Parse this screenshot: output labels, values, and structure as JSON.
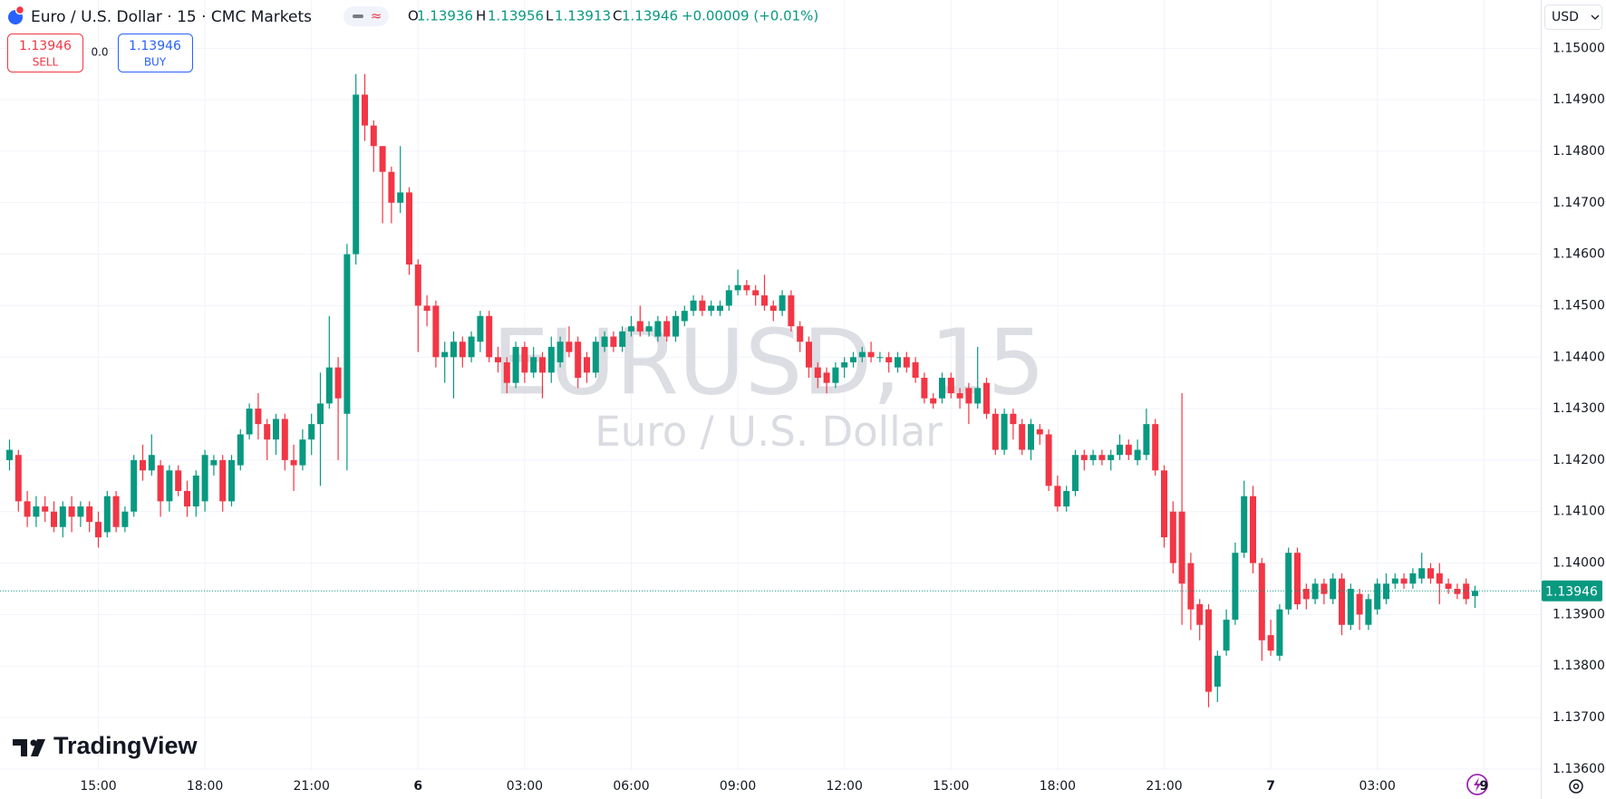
{
  "header": {
    "symbol_title": "Euro / U.S. Dollar · 15 · CMC Markets",
    "ohlc_labels": [
      "O",
      "H",
      "L",
      "C"
    ],
    "change": "+0.00009 (+0.01%)",
    "sell_price": "1.13946",
    "sell_label": "SELL",
    "spread": "0.0",
    "buy_price": "1.13946",
    "buy_label": "BUY",
    "currency": "USD"
  },
  "watermark": {
    "symbol": "EURUSD, 15",
    "name": "Euro / U.S. Dollar"
  },
  "brand": "TradingView",
  "chart_data": {
    "type": "candlestick",
    "categories": [
      null,
      null,
      null,
      null,
      null,
      null,
      null,
      null,
      null,
      null,
      "15:00",
      null,
      null,
      null,
      null,
      null,
      null,
      null,
      null,
      null,
      null,
      null,
      "18:00",
      null,
      null,
      null,
      null,
      null,
      null,
      null,
      null,
      null,
      null,
      null,
      "21:00",
      null,
      null,
      null,
      null,
      null,
      null,
      null,
      null,
      null,
      null,
      null,
      "6",
      null,
      null,
      null,
      null,
      null,
      null,
      null,
      null,
      null,
      null,
      null,
      "03:00",
      null,
      null,
      null,
      null,
      null,
      null,
      null,
      null,
      null,
      null,
      null,
      "06:00",
      null,
      null,
      null,
      null,
      null,
      null,
      null,
      null,
      null,
      null,
      null,
      "09:00",
      null,
      null,
      null,
      null,
      null,
      null,
      null,
      null,
      null,
      null,
      null,
      "12:00",
      null,
      null,
      null,
      null,
      null,
      null,
      null,
      null,
      null,
      null,
      null,
      "15:00",
      null,
      null,
      null,
      null,
      null,
      null,
      null,
      null,
      null,
      null,
      null,
      "18:00",
      null,
      null,
      null,
      null,
      null,
      null,
      null,
      null,
      null,
      null,
      null,
      "21:00",
      null,
      null,
      null,
      null,
      null,
      null,
      null,
      null,
      null,
      null,
      null,
      "7",
      null,
      null,
      null,
      null,
      null,
      null,
      null,
      null,
      null,
      null,
      null,
      "03:00",
      null,
      null,
      null,
      null,
      null,
      null,
      null,
      null,
      null,
      null,
      null,
      "9"
    ],
    "open": [
      1.142,
      1.1421,
      1.1412,
      1.1409,
      1.1411,
      1.141,
      1.1407,
      1.1411,
      1.1409,
      1.1411,
      1.1408,
      1.1406,
      1.1413,
      1.1407,
      1.141,
      1.142,
      1.1418,
      1.1419,
      1.1412,
      1.1418,
      1.1414,
      1.1411,
      1.1412,
      1.1419,
      1.142,
      1.1412,
      1.1419,
      1.1425,
      1.143,
      1.1427,
      1.1424,
      1.1428,
      1.142,
      1.1419,
      1.1424,
      1.1427,
      1.1431,
      1.1438,
      1.1429,
      1.146,
      1.1491,
      1.1485,
      1.1481,
      1.1476,
      1.147,
      1.1472,
      1.1458,
      1.145,
      1.145,
      1.144,
      1.144,
      1.1443,
      1.144,
      1.1443,
      1.1448,
      1.144,
      1.1439,
      1.1435,
      1.1442,
      1.1437,
      1.144,
      1.1437,
      1.1439,
      1.1443,
      1.1443,
      1.144,
      1.1437,
      1.1442,
      1.1444,
      1.1442,
      1.1445,
      1.1447,
      1.1445,
      1.1444,
      1.1447,
      1.1444,
      1.1447,
      1.1449,
      1.1451,
      1.1449,
      1.1449,
      1.145,
      1.1453,
      1.1454,
      1.1453,
      1.1452,
      1.145,
      1.1449,
      1.1452,
      1.1446,
      1.1443,
      1.1438,
      1.1437,
      1.1435,
      1.1438,
      1.1439,
      1.144,
      1.1441,
      1.144,
      1.144,
      1.1438,
      1.144,
      1.1439,
      1.1436,
      1.1432,
      1.1432,
      1.1436,
      1.1433,
      1.1434,
      1.1431,
      1.1435,
      1.1429,
      1.1422,
      1.1429,
      1.1427,
      1.1422,
      1.1426,
      1.1425,
      1.1415,
      1.1411,
      1.1414,
      1.1421,
      1.142,
      1.1421,
      1.142,
      1.1421,
      1.1423,
      1.142,
      1.1421,
      1.1427,
      1.1418,
      1.141,
      1.141,
      1.14,
      1.1392,
      1.1391,
      1.1376,
      1.1383,
      1.1389,
      1.1402,
      1.1413,
      1.14,
      1.1386,
      1.1382,
      1.1391,
      1.1402,
      1.1395,
      1.1393,
      1.1396,
      1.1393,
      1.1397,
      1.1388,
      1.1394,
      1.1388,
      1.1391,
      1.1393,
      1.1396,
      1.1397,
      1.1396,
      1.1397,
      1.1399,
      1.1398,
      1.1396,
      1.1395,
      1.1396,
      1.13936,
      null
    ],
    "high": [
      1.1424,
      1.1422,
      1.1414,
      1.1413,
      1.1413,
      1.1412,
      1.1412,
      1.1413,
      1.1412,
      1.1412,
      1.141,
      1.1414,
      1.1414,
      1.1411,
      1.1421,
      1.1423,
      1.1425,
      1.142,
      1.1419,
      1.1419,
      1.1416,
      1.1418,
      1.1422,
      1.1421,
      1.1421,
      1.1421,
      1.1426,
      1.1431,
      1.1433,
      1.1428,
      1.1429,
      1.1429,
      1.1423,
      1.1426,
      1.1429,
      1.1437,
      1.1448,
      1.144,
      1.1462,
      1.1495,
      1.1495,
      1.1486,
      1.1481,
      1.1477,
      1.1481,
      1.1473,
      1.1459,
      1.1452,
      1.1451,
      1.1443,
      1.1445,
      1.1444,
      1.1445,
      1.1449,
      1.1449,
      1.1442,
      1.144,
      1.1443,
      1.1443,
      1.1442,
      1.1441,
      1.1444,
      1.1444,
      1.1446,
      1.1444,
      1.1441,
      1.1444,
      1.1445,
      1.1445,
      1.1446,
      1.1448,
      1.145,
      1.1447,
      1.1448,
      1.1448,
      1.1449,
      1.145,
      1.1452,
      1.1452,
      1.1451,
      1.1451,
      1.1454,
      1.1457,
      1.1455,
      1.1454,
      1.1456,
      1.1451,
      1.1453,
      1.1453,
      1.1447,
      1.1444,
      1.1439,
      1.1438,
      1.1439,
      1.144,
      1.1441,
      1.1442,
      1.1443,
      1.1441,
      1.1441,
      1.1441,
      1.1441,
      1.144,
      1.1437,
      1.1433,
      1.1437,
      1.1437,
      1.1434,
      1.1435,
      1.1442,
      1.1436,
      1.143,
      1.143,
      1.143,
      1.1428,
      1.1428,
      1.1427,
      1.1426,
      1.1417,
      1.1415,
      1.1422,
      1.1422,
      1.1422,
      1.1422,
      1.1422,
      1.1425,
      1.1424,
      1.1424,
      1.143,
      1.1428,
      1.1419,
      1.1412,
      1.1433,
      1.1402,
      1.1393,
      1.1392,
      1.1383,
      1.1391,
      1.1404,
      1.1416,
      1.1415,
      1.1401,
      1.1389,
      1.1392,
      1.1403,
      1.1403,
      1.1396,
      1.1397,
      1.1397,
      1.1398,
      1.1398,
      1.1396,
      1.1395,
      1.1394,
      1.1397,
      1.1398,
      1.1398,
      1.1398,
      1.1399,
      1.1402,
      1.14,
      1.14,
      1.1397,
      1.1396,
      1.1397,
      1.13956,
      null
    ],
    "low": [
      1.1418,
      1.141,
      1.1407,
      1.1407,
      1.1408,
      1.1406,
      1.1405,
      1.1406,
      1.1407,
      1.1406,
      1.1403,
      1.1405,
      1.1406,
      1.1406,
      1.1409,
      1.1416,
      1.1417,
      1.1409,
      1.141,
      1.1413,
      1.1409,
      1.1409,
      1.141,
      1.1417,
      1.141,
      1.1411,
      1.1418,
      1.1424,
      1.1424,
      1.142,
      1.1421,
      1.1418,
      1.1414,
      1.1418,
      1.1421,
      1.1415,
      1.143,
      1.142,
      1.1418,
      1.1458,
      1.1482,
      1.1476,
      1.1466,
      1.1466,
      1.1468,
      1.1456,
      1.1441,
      1.1446,
      1.1438,
      1.1435,
      1.1432,
      1.1438,
      1.1439,
      1.1441,
      1.1439,
      1.1437,
      1.1433,
      1.1434,
      1.1435,
      1.1436,
      1.1432,
      1.1435,
      1.1438,
      1.144,
      1.1434,
      1.1435,
      1.1436,
      1.1441,
      1.1441,
      1.1441,
      1.1444,
      1.1444,
      1.1444,
      1.1443,
      1.1443,
      1.1443,
      1.1446,
      1.1448,
      1.1448,
      1.1448,
      1.1448,
      1.1449,
      1.1452,
      1.1452,
      1.145,
      1.1449,
      1.1447,
      1.1448,
      1.1445,
      1.1441,
      1.1436,
      1.1434,
      1.1433,
      1.1434,
      1.1436,
      1.1438,
      1.1439,
      1.1439,
      1.1439,
      1.1437,
      1.1437,
      1.1437,
      1.1435,
      1.1431,
      1.143,
      1.1431,
      1.1432,
      1.143,
      1.1427,
      1.143,
      1.1428,
      1.1421,
      1.1421,
      1.1424,
      1.1421,
      1.142,
      1.1423,
      1.1414,
      1.141,
      1.141,
      1.1413,
      1.1418,
      1.1419,
      1.1419,
      1.1418,
      1.142,
      1.142,
      1.1419,
      1.142,
      1.1417,
      1.1403,
      1.1398,
      1.1388,
      1.1387,
      1.1385,
      1.1372,
      1.1373,
      1.1382,
      1.1388,
      1.1401,
      1.1398,
      1.1381,
      1.1382,
      1.1381,
      1.139,
      1.1391,
      1.1391,
      1.1392,
      1.1392,
      1.1392,
      1.1386,
      1.1387,
      1.1387,
      1.1387,
      1.139,
      1.1392,
      1.1395,
      1.1395,
      1.1395,
      1.1396,
      1.1396,
      1.1392,
      1.1394,
      1.1393,
      1.1392,
      1.13913,
      null
    ],
    "close": [
      1.1422,
      1.1412,
      1.1409,
      1.1411,
      1.141,
      1.1407,
      1.1411,
      1.1409,
      1.1411,
      1.1408,
      1.1405,
      1.1413,
      1.1407,
      1.141,
      1.142,
      1.1418,
      1.1421,
      1.1412,
      1.1418,
      1.1414,
      1.1411,
      1.1417,
      1.1421,
      1.142,
      1.1412,
      1.142,
      1.1425,
      1.143,
      1.1427,
      1.1424,
      1.1428,
      1.142,
      1.1419,
      1.1424,
      1.1427,
      1.1431,
      1.1438,
      1.1432,
      1.146,
      1.1491,
      1.1485,
      1.1481,
      1.1476,
      1.147,
      1.1472,
      1.1458,
      1.145,
      1.1449,
      1.144,
      1.1441,
      1.1443,
      1.144,
      1.1444,
      1.1448,
      1.144,
      1.1439,
      1.1435,
      1.1442,
      1.1437,
      1.144,
      1.1437,
      1.1442,
      1.1443,
      1.1441,
      1.1436,
      1.1437,
      1.1443,
      1.1444,
      1.1442,
      1.1445,
      1.1446,
      1.1445,
      1.1446,
      1.1447,
      1.1444,
      1.1448,
      1.1449,
      1.1451,
      1.1449,
      1.145,
      1.145,
      1.1453,
      1.1454,
      1.1453,
      1.1452,
      1.145,
      1.1449,
      1.1452,
      1.1446,
      1.1443,
      1.1438,
      1.1436,
      1.1435,
      1.1438,
      1.1439,
      1.144,
      1.1441,
      1.144,
      1.144,
      1.1439,
      1.144,
      1.1438,
      1.1436,
      1.1432,
      1.1431,
      1.1436,
      1.1433,
      1.1432,
      1.1431,
      1.1434,
      1.1429,
      1.1422,
      1.1429,
      1.1427,
      1.1422,
      1.1427,
      1.1425,
      1.1415,
      1.1411,
      1.1414,
      1.1421,
      1.142,
      1.1421,
      1.142,
      1.1421,
      1.1423,
      1.1421,
      1.1422,
      1.1427,
      1.1418,
      1.1405,
      1.14,
      1.1396,
      1.1391,
      1.1388,
      1.1375,
      1.1382,
      1.1389,
      1.1402,
      1.1413,
      1.14,
      1.1385,
      1.1383,
      1.1391,
      1.1402,
      1.1392,
      1.1393,
      1.1396,
      1.1394,
      1.1397,
      1.1388,
      1.1395,
      1.139,
      1.1393,
      1.1396,
      1.1396,
      1.1397,
      1.1396,
      1.1398,
      1.1399,
      1.1397,
      1.1396,
      1.1395,
      1.1394,
      1.1393,
      1.13946,
      null
    ],
    "up_color": "#089981",
    "down_color": "#f23645",
    "ylim": [
      1.13598,
      1.15034
    ],
    "yticks": [
      {
        "value": 1.15,
        "label": "1.15000"
      },
      {
        "value": 1.149,
        "label": "1.14900"
      },
      {
        "value": 1.148,
        "label": "1.14800"
      },
      {
        "value": 1.147,
        "label": "1.14700"
      },
      {
        "value": 1.146,
        "label": "1.14600"
      },
      {
        "value": 1.145,
        "label": "1.14500"
      },
      {
        "value": 1.144,
        "label": "1.14400"
      },
      {
        "value": 1.143,
        "label": "1.14300"
      },
      {
        "value": 1.142,
        "label": "1.14200"
      },
      {
        "value": 1.141,
        "label": "1.14100"
      },
      {
        "value": 1.14,
        "label": "1.14000"
      },
      {
        "value": 1.139,
        "label": "1.13900"
      },
      {
        "value": 1.138,
        "label": "1.13800"
      },
      {
        "value": 1.137,
        "label": "1.13700"
      },
      {
        "value": 1.136,
        "label": "1.13600"
      }
    ],
    "grid": true
  }
}
